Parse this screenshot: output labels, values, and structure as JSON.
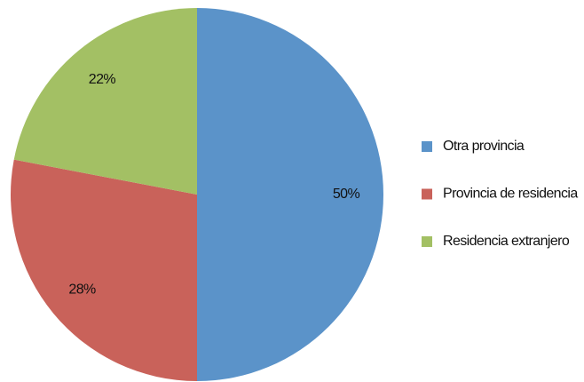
{
  "chart_data": {
    "type": "pie",
    "categories": [
      "Otra provincia",
      "Provincia de residencia",
      "Residencia extranjero"
    ],
    "values": [
      50,
      28,
      22
    ],
    "value_labels": [
      "50%",
      "28%",
      "22%"
    ],
    "colors": [
      "#5b93c9",
      "#c9625a",
      "#a3c064"
    ],
    "legend": "right"
  }
}
